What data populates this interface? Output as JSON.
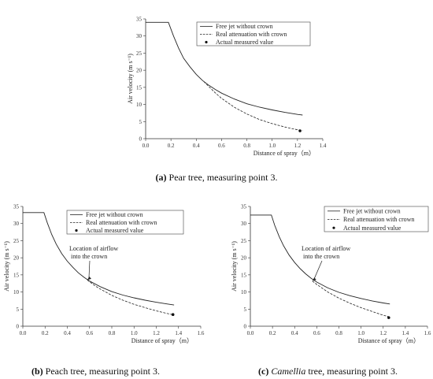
{
  "chart_data": [
    {
      "type": "line",
      "caption_letter": "(a)",
      "caption_text": " Pear tree, measuring point 3.",
      "xlabel": "Distance of spray（m）",
      "ylabel": "Air velocity (m s⁻¹)",
      "xlim": [
        0,
        1.4
      ],
      "ylim": [
        0,
        35
      ],
      "xticks": [
        "0.0",
        "0.2",
        "0.4",
        "0.6",
        "0.8",
        "1.0",
        "1.2",
        "1.4"
      ],
      "yticks": [
        "0",
        "5",
        "10",
        "15",
        "20",
        "25",
        "30",
        "35"
      ],
      "legend": [
        "Free jet without crown",
        "Real attenuation with crown",
        "Actual measured value"
      ],
      "annotation": "",
      "annotation_line2": "",
      "annotation_x": 0.48,
      "annotation_y": 16.5,
      "series": [
        {
          "name": "Free jet without crown",
          "style": "solid",
          "x": [
            0,
            0.18,
            0.22,
            0.26,
            0.3,
            0.35,
            0.4,
            0.45,
            0.5,
            0.55,
            0.6,
            0.7,
            0.8,
            0.9,
            1.0,
            1.1,
            1.2,
            1.24
          ],
          "y": [
            34,
            34,
            30,
            26.5,
            23.5,
            21,
            18.8,
            17,
            15.6,
            14.4,
            13.3,
            11.6,
            10.2,
            9.2,
            8.4,
            7.7,
            7.1,
            6.9
          ]
        },
        {
          "name": "Real attenuation with crown",
          "style": "dashed",
          "x": [
            0.46,
            0.5,
            0.55,
            0.6,
            0.7,
            0.8,
            0.9,
            1.0,
            1.1,
            1.2,
            1.24
          ],
          "y": [
            16.7,
            15.2,
            13.4,
            11.8,
            9.2,
            7.2,
            5.6,
            4.4,
            3.4,
            2.6,
            2.4
          ]
        },
        {
          "name": "Actual measured value",
          "style": "point",
          "x": [
            1.22
          ],
          "y": [
            2.3
          ]
        }
      ]
    },
    {
      "type": "line",
      "caption_letter": "(b)",
      "caption_text": " Peach tree, measuring point 3.",
      "xlabel": "Distance of spray（m）",
      "ylabel": "Air velocity (m s⁻¹)",
      "xlim": [
        0,
        1.6
      ],
      "ylim": [
        0,
        35
      ],
      "xticks": [
        "0.0",
        "0.2",
        "0.4",
        "0.6",
        "0.8",
        "1.0",
        "1.2",
        "1.4",
        "1.6"
      ],
      "yticks": [
        "0",
        "5",
        "10",
        "15",
        "20",
        "25",
        "30",
        "35"
      ],
      "legend": [
        "Free jet without crown",
        "Real attenuation with crown",
        "Actual measured value"
      ],
      "annotation": "Location of airflow",
      "annotation_line2": "into the crown",
      "annotation_x": 0.58,
      "annotation_y": 13.5,
      "series": [
        {
          "name": "Free jet without crown",
          "style": "solid",
          "x": [
            0,
            0.19,
            0.22,
            0.26,
            0.3,
            0.35,
            0.4,
            0.45,
            0.5,
            0.55,
            0.6,
            0.7,
            0.8,
            0.9,
            1.0,
            1.1,
            1.2,
            1.3,
            1.36
          ],
          "y": [
            33.2,
            33.2,
            30.2,
            26.8,
            24,
            21.2,
            19,
            17.2,
            15.6,
            14.3,
            13.2,
            11.5,
            10.1,
            9.1,
            8.3,
            7.6,
            7.0,
            6.5,
            6.2
          ]
        },
        {
          "name": "Real attenuation with crown",
          "style": "dashed",
          "x": [
            0.58,
            0.65,
            0.7,
            0.8,
            0.9,
            1.0,
            1.1,
            1.2,
            1.3,
            1.36
          ],
          "y": [
            13.5,
            11.8,
            10.8,
            9.0,
            7.6,
            6.4,
            5.4,
            4.5,
            3.7,
            3.3
          ]
        },
        {
          "name": "Actual measured value",
          "style": "point",
          "x": [
            1.35
          ],
          "y": [
            3.4
          ]
        }
      ]
    },
    {
      "type": "line",
      "caption_letter": "(c)",
      "caption_text": " tree, measuring point 3.",
      "caption_italic": "Camellia",
      "xlabel": "Distance of spray（m）",
      "ylabel": "Air velocity (m s⁻¹)",
      "xlim": [
        0,
        1.6
      ],
      "ylim": [
        0,
        35
      ],
      "xticks": [
        "0.0",
        "0.2",
        "0.4",
        "0.6",
        "0.8",
        "1.0",
        "1.2",
        "1.4",
        "1.6"
      ],
      "yticks": [
        "0",
        "5",
        "10",
        "15",
        "20",
        "25",
        "30",
        "35"
      ],
      "legend": [
        "Free jet without crown",
        "Real attenuation with crown",
        "Actual measured value"
      ],
      "annotation": "Location of airflow",
      "annotation_line2": "into the crown",
      "annotation_x": 0.56,
      "annotation_y": 13.2,
      "series": [
        {
          "name": "Free jet without crown",
          "style": "solid",
          "x": [
            0,
            0.19,
            0.22,
            0.26,
            0.3,
            0.35,
            0.4,
            0.45,
            0.5,
            0.55,
            0.6,
            0.7,
            0.8,
            0.9,
            1.0,
            1.1,
            1.2,
            1.26
          ],
          "y": [
            32.5,
            32.5,
            29.5,
            26.2,
            23.5,
            20.8,
            18.6,
            16.8,
            15.3,
            14.0,
            12.9,
            11.2,
            9.9,
            8.9,
            8.1,
            7.4,
            6.8,
            6.5
          ]
        },
        {
          "name": "Real attenuation with crown",
          "style": "dashed",
          "x": [
            0.56,
            0.6,
            0.7,
            0.8,
            0.9,
            1.0,
            1.1,
            1.2,
            1.26
          ],
          "y": [
            13.2,
            12.2,
            10.0,
            8.2,
            6.7,
            5.4,
            4.3,
            3.2,
            2.7
          ]
        },
        {
          "name": "Actual measured value",
          "style": "point",
          "x": [
            1.25
          ],
          "y": [
            2.5
          ]
        }
      ]
    }
  ]
}
